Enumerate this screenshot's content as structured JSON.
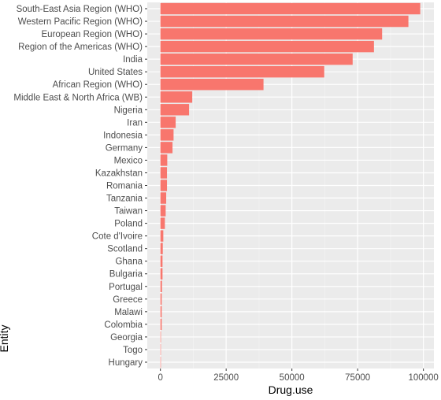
{
  "chart_data": {
    "type": "bar",
    "orientation": "horizontal",
    "xlabel": "Drug.use",
    "ylabel": "Entity",
    "xlim": [
      -5000,
      104000
    ],
    "xticks": [
      0,
      25000,
      50000,
      75000,
      100000
    ],
    "xtick_labels": [
      "0",
      "25000",
      "50000",
      "75000",
      "100000"
    ],
    "grid": true,
    "bar_color": "#F8766D",
    "panel_background": "#EBEBEB",
    "categories": [
      "South-East Asia Region (WHO)",
      "Western Pacific Region (WHO)",
      "European Region (WHO)",
      "Region of the Americas (WHO)",
      "India",
      "United States",
      "African Region (WHO)",
      "Middle East & North Africa (WB)",
      "Nigeria",
      "Iran",
      "Indonesia",
      "Germany",
      "Mexico",
      "Kazakhstan",
      "Romania",
      "Tanzania",
      "Taiwan",
      "Poland",
      "Cote d'Ivoire",
      "Scotland",
      "Ghana",
      "Bulgaria",
      "Portugal",
      "Greece",
      "Malawi",
      "Colombia",
      "Georgia",
      "Togo",
      "Hungary"
    ],
    "values": [
      98800,
      94300,
      84300,
      81200,
      73100,
      62300,
      39200,
      12100,
      10900,
      5800,
      5000,
      4600,
      2600,
      2500,
      2500,
      2200,
      2000,
      1700,
      1100,
      900,
      800,
      800,
      600,
      500,
      500,
      500,
      200,
      150,
      100
    ]
  }
}
